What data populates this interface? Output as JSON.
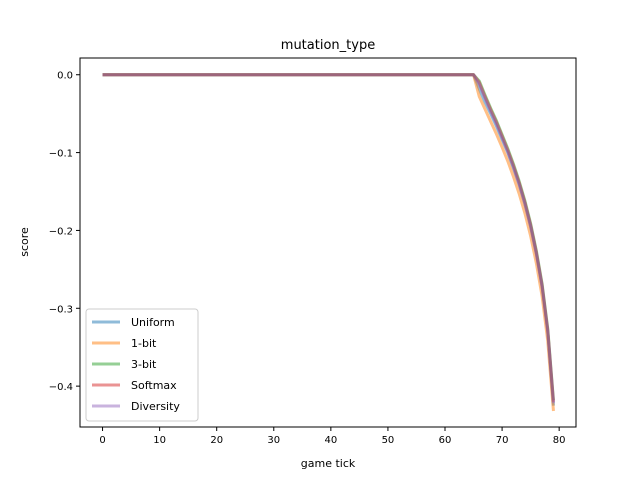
{
  "chart_data": {
    "type": "line",
    "title": "mutation_type",
    "xlabel": "game tick",
    "ylabel": "score",
    "xlim": [
      -3.95,
      82.95
    ],
    "ylim": [
      -0.4525,
      0.0215
    ],
    "xticks": [
      0,
      10,
      20,
      30,
      40,
      50,
      60,
      70,
      80
    ],
    "yticks": [
      0.0,
      -0.1,
      -0.2,
      -0.3,
      -0.4
    ],
    "ytick_labels": [
      "0.0",
      "−0.1",
      "−0.2",
      "−0.3",
      "−0.4"
    ],
    "grid": false,
    "legend_position": "lower-left",
    "x": [
      0,
      65,
      66,
      67,
      68,
      69,
      70,
      71,
      72,
      73,
      74,
      75,
      76,
      77,
      78,
      79
    ],
    "series": [
      {
        "name": "Uniform",
        "color": "#1f77b4",
        "values": [
          0,
          0,
          -0.018,
          -0.035,
          -0.05,
          -0.066,
          -0.083,
          -0.1,
          -0.12,
          -0.141,
          -0.166,
          -0.195,
          -0.23,
          -0.272,
          -0.33,
          -0.425
        ]
      },
      {
        "name": "1-bit",
        "color": "#ff7f0e",
        "values": [
          0,
          0,
          -0.028,
          -0.044,
          -0.06,
          -0.076,
          -0.093,
          -0.111,
          -0.131,
          -0.153,
          -0.178,
          -0.207,
          -0.242,
          -0.284,
          -0.342,
          -0.432
        ]
      },
      {
        "name": "3-bit",
        "color": "#2ca02c",
        "values": [
          0,
          0,
          -0.008,
          -0.026,
          -0.043,
          -0.059,
          -0.077,
          -0.095,
          -0.115,
          -0.137,
          -0.162,
          -0.191,
          -0.226,
          -0.268,
          -0.326,
          -0.418
        ]
      },
      {
        "name": "Softmax",
        "color": "#d62728",
        "values": [
          0,
          0,
          -0.01,
          -0.028,
          -0.045,
          -0.061,
          -0.079,
          -0.097,
          -0.117,
          -0.139,
          -0.164,
          -0.193,
          -0.228,
          -0.27,
          -0.328,
          -0.42
        ]
      },
      {
        "name": "Diversity",
        "color": "#9467bd",
        "values": [
          0,
          0,
          -0.012,
          -0.03,
          -0.047,
          -0.063,
          -0.081,
          -0.099,
          -0.119,
          -0.141,
          -0.166,
          -0.195,
          -0.23,
          -0.272,
          -0.33,
          -0.422
        ]
      }
    ]
  }
}
